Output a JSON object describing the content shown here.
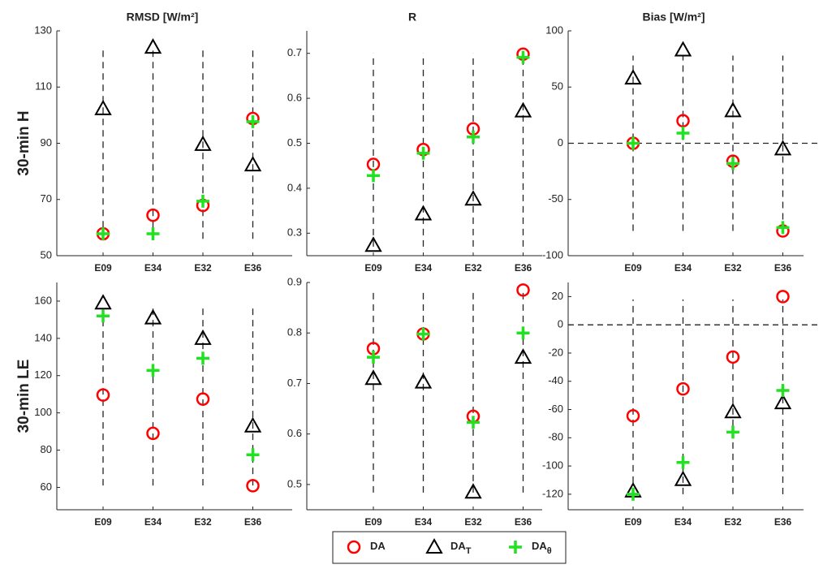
{
  "chart_data": [
    {
      "type": "scatter",
      "title": "RMSD [W/m²]",
      "ylabel": "30-min H",
      "categories": [
        "E09",
        "E34",
        "E32",
        "E36"
      ],
      "ylim": [
        50,
        130
      ],
      "yticks": [
        50,
        70,
        90,
        110,
        130
      ],
      "vlines": [
        56,
        123
      ],
      "series": [
        {
          "name": "DA",
          "marker": "circle",
          "color": "#ff0000",
          "values": [
            57.8,
            64.4,
            67.9,
            98.8
          ]
        },
        {
          "name": "DA",
          "sub": "T",
          "marker": "triangle",
          "color": "#000000",
          "values": [
            102.3,
            124.2,
            89.6,
            82.3
          ]
        },
        {
          "name": "DA",
          "sub": "θ",
          "marker": "plus",
          "color": "#22e022",
          "values": [
            57.8,
            57.8,
            69.4,
            97.7
          ]
        }
      ]
    },
    {
      "type": "scatter",
      "title": "R",
      "categories": [
        "E09",
        "E34",
        "E32",
        "E36"
      ],
      "ylim": [
        0.25,
        0.75
      ],
      "yticks": [
        0.3,
        0.4,
        0.5,
        0.6,
        0.7
      ],
      "vlines": [
        0.27,
        0.7
      ],
      "series": [
        {
          "name": "DA",
          "marker": "circle",
          "color": "#ff0000",
          "values": [
            0.453,
            0.486,
            0.532,
            0.698
          ]
        },
        {
          "name": "DA",
          "sub": "T",
          "marker": "triangle",
          "color": "#000000",
          "values": [
            0.273,
            0.343,
            0.376,
            0.572
          ]
        },
        {
          "name": "DA",
          "sub": "θ",
          "marker": "plus",
          "color": "#22e022",
          "values": [
            0.428,
            0.478,
            0.514,
            0.691
          ]
        }
      ]
    },
    {
      "type": "scatter",
      "title": "Bias [W/m²]",
      "categories": [
        "E09",
        "E34",
        "E32",
        "E36"
      ],
      "ylim": [
        -100,
        100
      ],
      "yticks": [
        -100,
        -50,
        0,
        50,
        100
      ],
      "vlines": [
        -78,
        78
      ],
      "hline": 0,
      "series": [
        {
          "name": "DA",
          "marker": "circle",
          "color": "#ff0000",
          "values": [
            0,
            20,
            -16,
            -78
          ]
        },
        {
          "name": "DA",
          "sub": "T",
          "marker": "triangle",
          "color": "#000000",
          "values": [
            58,
            83,
            29,
            -5
          ]
        },
        {
          "name": "DA",
          "sub": "θ",
          "marker": "plus",
          "color": "#22e022",
          "values": [
            0,
            9,
            -18,
            -75
          ]
        }
      ]
    },
    {
      "type": "scatter",
      "ylabel": "30-min LE",
      "categories": [
        "E09",
        "E34",
        "E32",
        "E36"
      ],
      "ylim": [
        48,
        170
      ],
      "yticks": [
        60,
        80,
        100,
        120,
        140,
        160
      ],
      "vlines": [
        61,
        158
      ],
      "series": [
        {
          "name": "DA",
          "marker": "circle",
          "color": "#ff0000",
          "values": [
            109.6,
            89,
            107.4,
            60.9
          ]
        },
        {
          "name": "DA",
          "sub": "T",
          "marker": "triangle",
          "color": "#000000",
          "values": [
            159,
            151,
            140,
            93
          ]
        },
        {
          "name": "DA",
          "sub": "θ",
          "marker": "plus",
          "color": "#22e022",
          "values": [
            152,
            122.8,
            129.3,
            77.5
          ]
        }
      ]
    },
    {
      "type": "scatter",
      "categories": [
        "E09",
        "E34",
        "E32",
        "E36"
      ],
      "ylim": [
        0.45,
        0.9
      ],
      "yticks": [
        0.5,
        0.6,
        0.7,
        0.8,
        0.9
      ],
      "vlines": [
        0.484,
        0.88
      ],
      "series": [
        {
          "name": "DA",
          "marker": "circle",
          "color": "#ff0000",
          "values": [
            0.769,
            0.798,
            0.635,
            0.885
          ]
        },
        {
          "name": "DA",
          "sub": "T",
          "marker": "triangle",
          "color": "#000000",
          "values": [
            0.71,
            0.703,
            0.485,
            0.752
          ]
        },
        {
          "name": "DA",
          "sub": "θ",
          "marker": "plus",
          "color": "#22e022",
          "values": [
            0.752,
            0.798,
            0.623,
            0.8
          ]
        }
      ]
    },
    {
      "type": "scatter",
      "categories": [
        "E09",
        "E34",
        "E32",
        "E36"
      ],
      "ylim": [
        -131,
        30
      ],
      "yticks": [
        -120,
        -100,
        -80,
        -60,
        -40,
        -20,
        0,
        20
      ],
      "vlines": [
        -120,
        18
      ],
      "hline": 0,
      "series": [
        {
          "name": "DA",
          "marker": "circle",
          "color": "#ff0000",
          "values": [
            -64.5,
            -45.4,
            -22.8,
            20
          ]
        },
        {
          "name": "DA",
          "sub": "T",
          "marker": "triangle",
          "color": "#000000",
          "values": [
            -117.7,
            -109.6,
            -61.6,
            -55.2
          ]
        },
        {
          "name": "DA",
          "sub": "θ",
          "marker": "plus",
          "color": "#22e022",
          "values": [
            -120,
            -97.5,
            -76,
            -46.5
          ]
        }
      ]
    }
  ]
}
